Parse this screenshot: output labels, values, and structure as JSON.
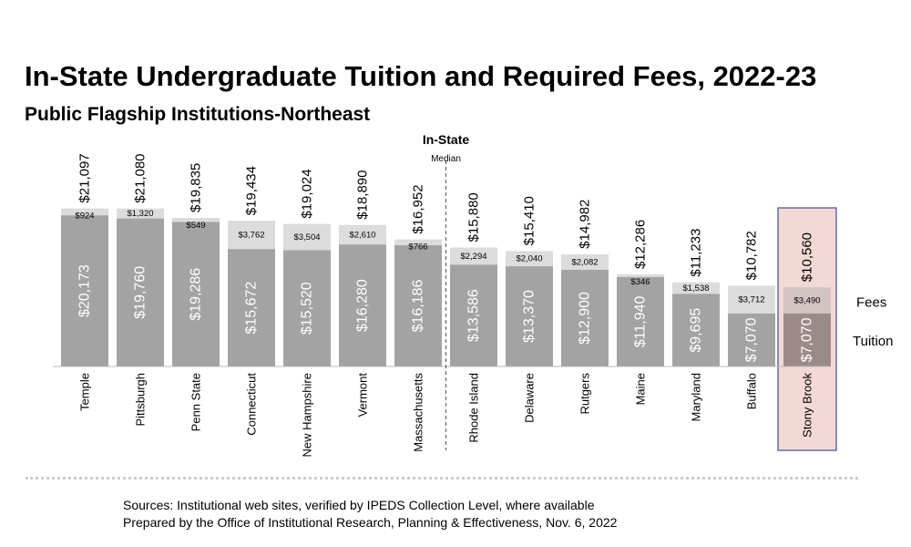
{
  "title": "In-State Undergraduate Tuition and Required Fees, 2022-23",
  "subtitle": "Public Flagship Institutions-Northeast",
  "sources": [
    "Sources: Institutional web sites, verified by IPEDS Collection Level, where available",
    "Prepared by the Office of Institutional Research, Planning & Effectiveness, Nov. 6, 2022"
  ],
  "colors": {
    "tuition": "#a3a3a3",
    "fees": "#dcdcdc",
    "highlight_fill": "#f3d9d6",
    "highlight_border": "#3d4f8f",
    "highlight_tuition": "#9c8a89",
    "highlight_fees": "#d3c3c2"
  },
  "chart_data": {
    "type": "bar",
    "stacked": true,
    "categories": [
      "Temple",
      "Pittsburgh",
      "Penn State",
      "Connecticut",
      "New Hampshire",
      "Vermont",
      "Massachusetts",
      "Rhode Island",
      "Delaware",
      "Rutgers",
      "Maine",
      "Maryland",
      "Buffalo",
      "Stony Brook"
    ],
    "series": [
      {
        "name": "Tuition",
        "values": [
          20173,
          19760,
          19286,
          15672,
          15520,
          16280,
          16186,
          13586,
          13370,
          12900,
          11940,
          9695,
          7070,
          7070
        ]
      },
      {
        "name": "Fees",
        "values": [
          924,
          1320,
          549,
          3762,
          3504,
          2610,
          766,
          2294,
          2040,
          2082,
          346,
          1538,
          3712,
          3490
        ]
      }
    ],
    "totals": [
      21097,
      21080,
      19835,
      19434,
      19024,
      18890,
      16952,
      15880,
      15410,
      14982,
      12286,
      11233,
      10782,
      10560
    ],
    "tuition_labels": [
      "$20,173",
      "$19,760",
      "$19,286",
      "$15,672",
      "$15,520",
      "$16,280",
      "$16,186",
      "$13,586",
      "$13,370",
      "$12,900",
      "$11,940",
      "$9,695",
      "$7,070",
      "$7,070"
    ],
    "fee_labels": [
      "$924",
      "$1,320",
      "$549",
      "$3,762",
      "$3,504",
      "$2,610",
      "$766",
      "$2,294",
      "$2,040",
      "$2,082",
      "$346",
      "$1,538",
      "$3,712",
      "$3,490"
    ],
    "total_labels": [
      "$21,097",
      "$21,080",
      "$19,835",
      "$19,434",
      "$19,024",
      "$18,890",
      "$16,952",
      "$15,880",
      "$15,410",
      "$14,982",
      "$12,286",
      "$11,233",
      "$10,782",
      "$10,560"
    ],
    "median_label": "In-State",
    "median_sublabel": "Median",
    "median_after_category": "Massachusetts",
    "highlight_category": "Stony Brook",
    "legend": [
      "Fees",
      "Tuition"
    ],
    "ylim": [
      0,
      21500
    ]
  }
}
